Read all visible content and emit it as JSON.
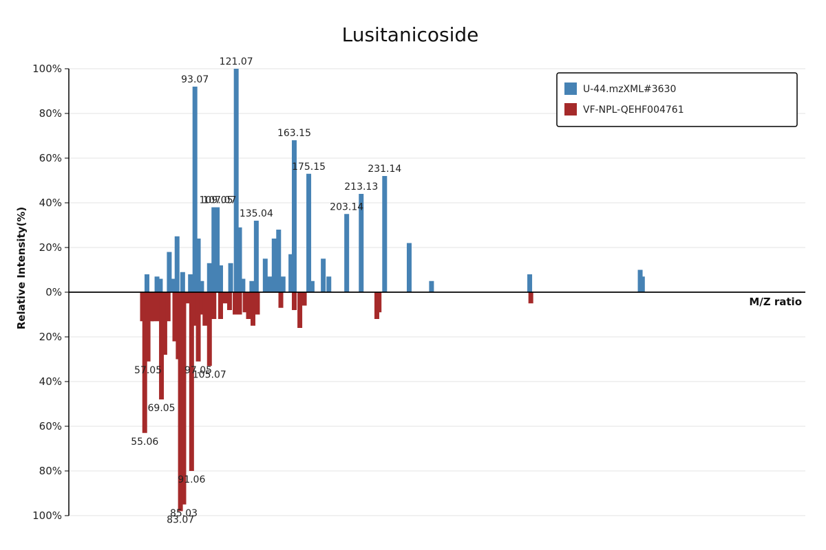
{
  "chart_data": {
    "type": "bar",
    "title": "Lusitanicoside",
    "xlabel": "M/Z ratio",
    "ylabel": "Relative Intensity(%)",
    "y_ticks_top": [
      "100%",
      "80%",
      "60%",
      "40%",
      "20%",
      "0%"
    ],
    "y_ticks_bottom": [
      "20%",
      "40%",
      "60%",
      "80%",
      "100%"
    ],
    "ylim": [
      -100,
      100
    ],
    "xlim": [
      25,
      355
    ],
    "grid": true,
    "legend_position": "top-right",
    "series": [
      {
        "name": "U-44.mzXML#3630",
        "color": "#4682b4",
        "direction": "up",
        "peaks": [
          {
            "mz": 60.0,
            "intensity": 8
          },
          {
            "mz": 64.5,
            "intensity": 7
          },
          {
            "mz": 66.0,
            "intensity": 6
          },
          {
            "mz": 70.0,
            "intensity": 18
          },
          {
            "mz": 72.0,
            "intensity": 6
          },
          {
            "mz": 73.5,
            "intensity": 25
          },
          {
            "mz": 76.0,
            "intensity": 9
          },
          {
            "mz": 79.5,
            "intensity": 8
          },
          {
            "mz": 81.5,
            "intensity": 92
          },
          {
            "mz": 83.0,
            "intensity": 24
          },
          {
            "mz": 84.5,
            "intensity": 5
          },
          {
            "mz": 88.0,
            "intensity": 13
          },
          {
            "mz": 90.0,
            "intensity": 38
          },
          {
            "mz": 91.5,
            "intensity": 38
          },
          {
            "mz": 93.0,
            "intensity": 12
          },
          {
            "mz": 97.5,
            "intensity": 13
          },
          {
            "mz": 100.0,
            "intensity": 100
          },
          {
            "mz": 101.5,
            "intensity": 29
          },
          {
            "mz": 103.0,
            "intensity": 6
          },
          {
            "mz": 107.0,
            "intensity": 5
          },
          {
            "mz": 109.0,
            "intensity": 32
          },
          {
            "mz": 113.0,
            "intensity": 15
          },
          {
            "mz": 115.0,
            "intensity": 7
          },
          {
            "mz": 117.0,
            "intensity": 24
          },
          {
            "mz": 119.0,
            "intensity": 28
          },
          {
            "mz": 121.0,
            "intensity": 7
          },
          {
            "mz": 124.5,
            "intensity": 17
          },
          {
            "mz": 126.0,
            "intensity": 68
          },
          {
            "mz": 132.5,
            "intensity": 53
          },
          {
            "mz": 134.0,
            "intensity": 5
          },
          {
            "mz": 139.0,
            "intensity": 15
          },
          {
            "mz": 141.5,
            "intensity": 7
          },
          {
            "mz": 149.5,
            "intensity": 35
          },
          {
            "mz": 156.0,
            "intensity": 44
          },
          {
            "mz": 166.5,
            "intensity": 52
          },
          {
            "mz": 177.5,
            "intensity": 22
          },
          {
            "mz": 187.5,
            "intensity": 5
          },
          {
            "mz": 231.5,
            "intensity": 8
          },
          {
            "mz": 281.0,
            "intensity": 10
          },
          {
            "mz": 282.0,
            "intensity": 7
          }
        ]
      },
      {
        "name": "VF-NPL-QEHF004761",
        "color": "#a52a2a",
        "direction": "down",
        "peaks": [
          {
            "mz": 58.0,
            "intensity": 13
          },
          {
            "mz": 59.0,
            "intensity": 63
          },
          {
            "mz": 60.5,
            "intensity": 31
          },
          {
            "mz": 62.0,
            "intensity": 13
          },
          {
            "mz": 63.0,
            "intensity": 13
          },
          {
            "mz": 65.0,
            "intensity": 13
          },
          {
            "mz": 66.5,
            "intensity": 48
          },
          {
            "mz": 68.0,
            "intensity": 28
          },
          {
            "mz": 69.5,
            "intensity": 13
          },
          {
            "mz": 72.5,
            "intensity": 22
          },
          {
            "mz": 74.0,
            "intensity": 30
          },
          {
            "mz": 75.0,
            "intensity": 98
          },
          {
            "mz": 76.5,
            "intensity": 95
          },
          {
            "mz": 78.5,
            "intensity": 5
          },
          {
            "mz": 80.0,
            "intensity": 80
          },
          {
            "mz": 81.5,
            "intensity": 15
          },
          {
            "mz": 83.0,
            "intensity": 31
          },
          {
            "mz": 84.5,
            "intensity": 10
          },
          {
            "mz": 86.0,
            "intensity": 15
          },
          {
            "mz": 88.0,
            "intensity": 33
          },
          {
            "mz": 90.0,
            "intensity": 12
          },
          {
            "mz": 93.0,
            "intensity": 12
          },
          {
            "mz": 95.0,
            "intensity": 5
          },
          {
            "mz": 97.0,
            "intensity": 8
          },
          {
            "mz": 99.5,
            "intensity": 10
          },
          {
            "mz": 101.5,
            "intensity": 10
          },
          {
            "mz": 104.0,
            "intensity": 9
          },
          {
            "mz": 105.5,
            "intensity": 12
          },
          {
            "mz": 107.5,
            "intensity": 15
          },
          {
            "mz": 109.5,
            "intensity": 10
          },
          {
            "mz": 120.0,
            "intensity": 7
          },
          {
            "mz": 126.0,
            "intensity": 8
          },
          {
            "mz": 128.5,
            "intensity": 16
          },
          {
            "mz": 130.5,
            "intensity": 6
          },
          {
            "mz": 163.0,
            "intensity": 12
          },
          {
            "mz": 164.0,
            "intensity": 9
          },
          {
            "mz": 232.0,
            "intensity": 5
          }
        ]
      }
    ],
    "annotations": [
      {
        "text": "121.07",
        "mz": 100.0,
        "intensity": 100
      },
      {
        "text": "93.07",
        "mz": 81.5,
        "intensity": 92
      },
      {
        "text": "163.15",
        "mz": 126.0,
        "intensity": 68
      },
      {
        "text": "175.15",
        "mz": 132.5,
        "intensity": 53
      },
      {
        "text": "231.14",
        "mz": 166.5,
        "intensity": 52
      },
      {
        "text": "213.13",
        "mz": 156.0,
        "intensity": 44
      },
      {
        "text": "109.05",
        "mz": 91.0,
        "intensity": 38
      },
      {
        "text": "107.07",
        "mz": 92.5,
        "intensity": 38
      },
      {
        "text": "203.14",
        "mz": 149.5,
        "intensity": 35
      },
      {
        "text": "135.04",
        "mz": 109.0,
        "intensity": 32
      },
      {
        "text": "57.05",
        "mz": 60.5,
        "intensity": -31
      },
      {
        "text": "97.05",
        "mz": 83.0,
        "intensity": -31
      },
      {
        "text": "105.07",
        "mz": 88.0,
        "intensity": -33
      },
      {
        "text": "69.05",
        "mz": 66.5,
        "intensity": -48
      },
      {
        "text": "55.06",
        "mz": 59.0,
        "intensity": -63
      },
      {
        "text": "91.06",
        "mz": 80.0,
        "intensity": -80
      },
      {
        "text": "85.03",
        "mz": 76.5,
        "intensity": -95
      },
      {
        "text": "83.07",
        "mz": 75.0,
        "intensity": -98
      }
    ]
  }
}
